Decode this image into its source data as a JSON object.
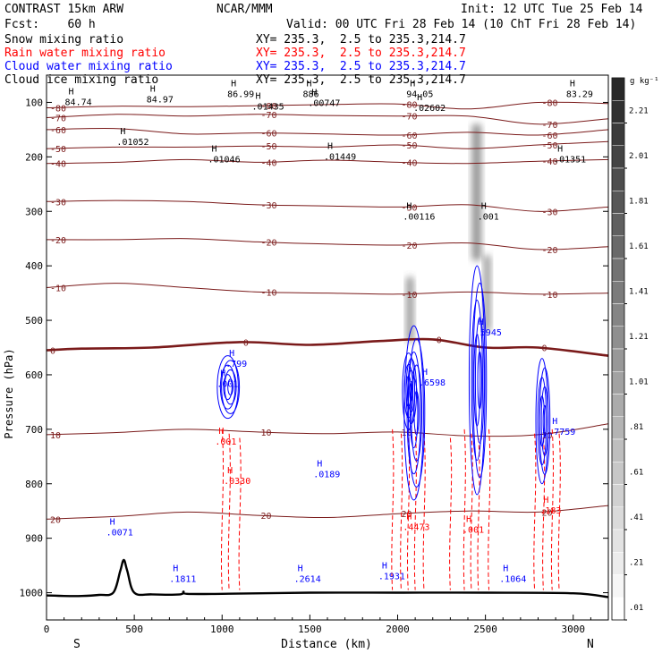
{
  "header": {
    "model": "CONTRAST 15km ARW",
    "org": "NCAR/MMM",
    "init": "Init: 12 UTC Tue 25 Feb 14",
    "fcst": "Fcst:    60 h",
    "valid": "Valid: 00 UTC Fri 28 Feb 14 (10 ChT Fri 28 Feb 14)"
  },
  "fields": [
    {
      "name": "Snow mixing ratio",
      "xy": "XY= 235.3,  2.5 to 235.3,214.7",
      "color": "#000000"
    },
    {
      "name": "Rain water mixing ratio",
      "xy": "XY= 235.3,  2.5 to 235.3,214.7",
      "color": "#ff0000"
    },
    {
      "name": "Cloud water mixing ratio",
      "xy": "XY= 235.3,  2.5 to 235.3,214.7",
      "color": "#0000ff"
    },
    {
      "name": "Cloud ice mixing ratio",
      "xy": "XY= 235.3,  2.5 to 235.3,214.7",
      "color": "#000000"
    }
  ],
  "chart_data": {
    "type": "cross-section",
    "xlabel": "Distance (km)",
    "ylabel": "Pressure (hPa)",
    "xlim": [
      0,
      3200
    ],
    "ylim": [
      1050,
      50
    ],
    "x_ticks": [
      0,
      500,
      1000,
      1500,
      2000,
      2500,
      3000
    ],
    "y_ticks": [
      100,
      200,
      300,
      400,
      500,
      600,
      700,
      800,
      900,
      1000
    ],
    "end_labels": {
      "left": "S",
      "right": "N"
    },
    "colorbar": {
      "unit": "g kg⁻¹",
      "levels": [
        "2.21",
        "2.01",
        "1.81",
        "1.61",
        "1.41",
        "1.21",
        "1.01",
        ".81",
        ".61",
        ".41",
        ".21",
        ".01"
      ]
    },
    "temperature_contours": [
      {
        "label": "-80",
        "points": [
          [
            0,
            110
          ],
          [
            400,
            107
          ],
          [
            800,
            108
          ],
          [
            1200,
            106
          ],
          [
            1600,
            104
          ],
          [
            2000,
            103
          ],
          [
            2400,
            112
          ],
          [
            2800,
            100
          ],
          [
            3200,
            102
          ]
        ]
      },
      {
        "label": "-70",
        "points": [
          [
            0,
            128
          ],
          [
            400,
            122
          ],
          [
            800,
            125
          ],
          [
            1200,
            122
          ],
          [
            1600,
            124
          ],
          [
            2000,
            125
          ],
          [
            2400,
            125
          ],
          [
            2800,
            140
          ],
          [
            3200,
            130
          ]
        ]
      },
      {
        "label": "-60",
        "points": [
          [
            0,
            150
          ],
          [
            400,
            148
          ],
          [
            800,
            158
          ],
          [
            1200,
            156
          ],
          [
            1600,
            158
          ],
          [
            2000,
            160
          ],
          [
            2400,
            155
          ],
          [
            2800,
            160
          ],
          [
            3200,
            150
          ]
        ]
      },
      {
        "label": "-50",
        "points": [
          [
            0,
            185
          ],
          [
            400,
            182
          ],
          [
            800,
            182
          ],
          [
            1200,
            180
          ],
          [
            1600,
            182
          ],
          [
            2000,
            178
          ],
          [
            2400,
            185
          ],
          [
            2800,
            178
          ],
          [
            3200,
            172
          ]
        ]
      },
      {
        "label": "-40",
        "points": [
          [
            0,
            212
          ],
          [
            400,
            210
          ],
          [
            800,
            205
          ],
          [
            1200,
            210
          ],
          [
            1600,
            206
          ],
          [
            2000,
            210
          ],
          [
            2400,
            212
          ],
          [
            2800,
            208
          ],
          [
            3200,
            205
          ]
        ]
      },
      {
        "label": "-30",
        "points": [
          [
            0,
            282
          ],
          [
            400,
            280
          ],
          [
            800,
            282
          ],
          [
            1200,
            288
          ],
          [
            1600,
            290
          ],
          [
            2000,
            292
          ],
          [
            2400,
            288
          ],
          [
            2800,
            300
          ],
          [
            3200,
            292
          ]
        ]
      },
      {
        "label": "-20",
        "points": [
          [
            0,
            352
          ],
          [
            400,
            352
          ],
          [
            800,
            350
          ],
          [
            1200,
            356
          ],
          [
            1600,
            360
          ],
          [
            2000,
            362
          ],
          [
            2400,
            358
          ],
          [
            2800,
            370
          ],
          [
            3200,
            365
          ]
        ]
      },
      {
        "label": "-10",
        "points": [
          [
            0,
            440
          ],
          [
            400,
            432
          ],
          [
            800,
            440
          ],
          [
            1200,
            448
          ],
          [
            1600,
            450
          ],
          [
            2000,
            452
          ],
          [
            2400,
            448
          ],
          [
            2800,
            452
          ],
          [
            3200,
            450
          ]
        ]
      },
      {
        "label": "0",
        "points": [
          [
            0,
            555
          ],
          [
            200,
            552
          ],
          [
            600,
            550
          ],
          [
            1100,
            540
          ],
          [
            1500,
            545
          ],
          [
            1900,
            538
          ],
          [
            2200,
            535
          ],
          [
            2500,
            550
          ],
          [
            2800,
            550
          ],
          [
            3200,
            565
          ]
        ]
      },
      {
        "label": "10",
        "points": [
          [
            0,
            710
          ],
          [
            400,
            706
          ],
          [
            800,
            700
          ],
          [
            1200,
            705
          ],
          [
            1600,
            708
          ],
          [
            2000,
            705
          ],
          [
            2400,
            712
          ],
          [
            2800,
            710
          ],
          [
            3200,
            690
          ]
        ]
      },
      {
        "label": "20",
        "points": [
          [
            0,
            865
          ],
          [
            400,
            860
          ],
          [
            800,
            852
          ],
          [
            1200,
            858
          ],
          [
            1600,
            862
          ],
          [
            2000,
            855
          ],
          [
            2400,
            850
          ],
          [
            2800,
            852
          ],
          [
            3200,
            840
          ]
        ]
      }
    ],
    "cloud_ice_labels": [
      {
        "text": "84.74",
        "x": 125,
        "p": 105
      },
      {
        "text": "84.97",
        "x": 590,
        "p": 100
      },
      {
        "text": "86.99",
        "x": 1050,
        "p": 90
      },
      {
        "text": ".01435",
        "x": 1190,
        "p": 113
      },
      {
        "text": "886",
        "x": 1480,
        "p": 90
      },
      {
        "text": ".00747",
        "x": 1510,
        "p": 107
      },
      {
        "text": "94.05",
        "x": 2070,
        "p": 90
      },
      {
        "text": ".02602",
        "x": 2110,
        "p": 116
      },
      {
        "text": "83.29",
        "x": 2980,
        "p": 90
      },
      {
        "text": ".01052",
        "x": 420,
        "p": 178
      },
      {
        "text": ".01046",
        "x": 940,
        "p": 210
      },
      {
        "text": ".01449",
        "x": 1600,
        "p": 205
      },
      {
        "text": ".01351",
        "x": 2910,
        "p": 210
      },
      {
        "text": ".00116",
        "x": 2050,
        "p": 315
      },
      {
        "text": ".001",
        "x": 2475,
        "p": 315
      }
    ],
    "cloud_water_labels": [
      {
        "text": ".799",
        "x": 1040,
        "p": 585
      },
      {
        "text": ".001",
        "x": 990,
        "p": 622
      },
      {
        "text": ".6598",
        "x": 2140,
        "p": 620
      },
      {
        "text": ".5945",
        "x": 2460,
        "p": 528
      },
      {
        "text": ".7759",
        "x": 2880,
        "p": 710
      },
      {
        "text": ".0189",
        "x": 1540,
        "p": 788
      },
      {
        "text": ".0071",
        "x": 360,
        "p": 895
      },
      {
        "text": ".1811",
        "x": 720,
        "p": 980
      },
      {
        "text": ".2614",
        "x": 1430,
        "p": 980
      },
      {
        "text": ".1931",
        "x": 1910,
        "p": 975
      },
      {
        "text": ".1064",
        "x": 2600,
        "p": 980
      }
    ],
    "rain_labels": [
      {
        "text": ".001",
        "x": 980,
        "p": 728
      },
      {
        "text": ".0330",
        "x": 1030,
        "p": 800
      },
      {
        "text": ".4473",
        "x": 2050,
        "p": 885
      },
      {
        "text": ".001",
        "x": 2390,
        "p": 890
      },
      {
        "text": ".183",
        "x": 2830,
        "p": 855
      }
    ],
    "terrain": [
      [
        0,
        1005
      ],
      [
        100,
        1006
      ],
      [
        200,
        1006
      ],
      [
        300,
        1004
      ],
      [
        380,
        1000
      ],
      [
        420,
        960
      ],
      [
        440,
        940
      ],
      [
        460,
        960
      ],
      [
        500,
        1000
      ],
      [
        600,
        1003
      ],
      [
        760,
        1003
      ],
      [
        780,
        998
      ],
      [
        800,
        1002
      ],
      [
        1000,
        1002
      ],
      [
        1500,
        1000
      ],
      [
        2000,
        1000
      ],
      [
        2500,
        1000
      ],
      [
        3000,
        1001
      ],
      [
        3200,
        1008
      ]
    ],
    "snow_shading": [
      {
        "x": 2070,
        "p_top": 420,
        "p_bot": 540,
        "w": 60
      },
      {
        "x": 2450,
        "p_top": 140,
        "p_bot": 390,
        "w": 80
      },
      {
        "x": 2510,
        "p_top": 380,
        "p_bot": 520,
        "w": 55
      }
    ],
    "cloud_water_cores": [
      {
        "x": 1040,
        "p_top": 565,
        "p_bot": 680,
        "w": 120
      },
      {
        "x": 2100,
        "p_top": 510,
        "p_bot": 830,
        "w": 110
      },
      {
        "x": 2460,
        "p_top": 400,
        "p_bot": 820,
        "w": 90
      },
      {
        "x": 2830,
        "p_top": 570,
        "p_bot": 800,
        "w": 70
      },
      {
        "x": 2070,
        "p_top": 560,
        "p_bot": 700,
        "w": 70
      }
    ],
    "rain_columns": [
      1000,
      1040,
      1100,
      1970,
      2020,
      2060,
      2100,
      2150,
      2300,
      2380,
      2420,
      2460,
      2520,
      2780,
      2830,
      2880,
      2920
    ]
  }
}
